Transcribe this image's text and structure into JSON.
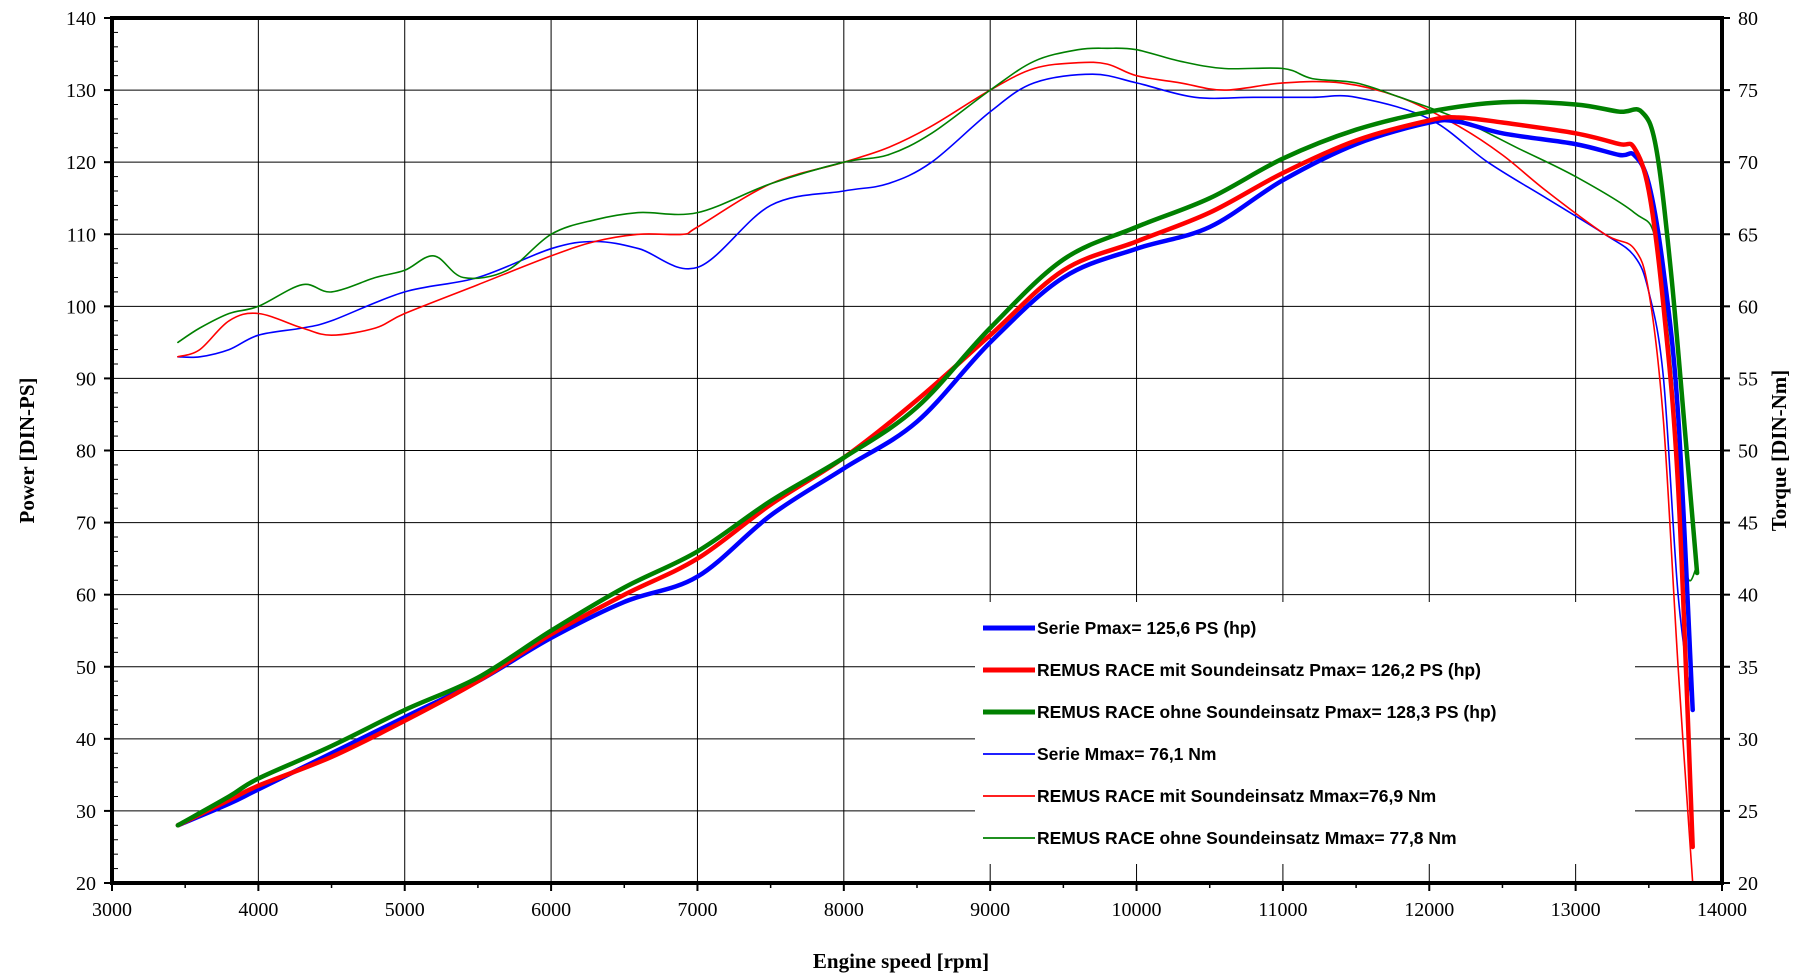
{
  "chart_data": {
    "type": "line",
    "xlabel": "Engine speed [rpm]",
    "ylabel": "Power [DIN-PS]",
    "y2label": "Torque [DIN-Nm]",
    "xlim": [
      3000,
      14000
    ],
    "ylim": [
      20,
      140
    ],
    "y2lim": [
      20,
      80
    ],
    "x_ticks": [
      3000,
      4000,
      5000,
      6000,
      7000,
      8000,
      9000,
      10000,
      11000,
      12000,
      13000,
      14000
    ],
    "y_ticks": [
      20,
      30,
      40,
      50,
      60,
      70,
      80,
      90,
      100,
      110,
      120,
      130,
      140
    ],
    "y2_ticks": [
      20,
      25,
      30,
      35,
      40,
      45,
      50,
      55,
      60,
      65,
      70,
      75,
      80
    ],
    "grid": true,
    "legend_position": "bottom-right",
    "series": [
      {
        "name": "Serie Pmax= 125,6 PS (hp)",
        "axis": "left",
        "color": "#0000ff",
        "weight": "thick",
        "x": [
          3450,
          3800,
          4000,
          4500,
          5000,
          5500,
          6000,
          6500,
          7000,
          7500,
          8000,
          8500,
          9000,
          9500,
          10000,
          10500,
          11000,
          11500,
          12000,
          12200,
          12500,
          13000,
          13300,
          13400,
          13500,
          13600,
          13700,
          13800
        ],
        "values": [
          28,
          31,
          33,
          38,
          43,
          48,
          54,
          59,
          62.5,
          71,
          77.5,
          84,
          95,
          104,
          108,
          111,
          117.5,
          122.5,
          125.5,
          125.6,
          124,
          122.5,
          121,
          121,
          117,
          105,
          85,
          44
        ]
      },
      {
        "name": "REMUS RACE mit Soundeinsatz Pmax=  126,2 PS (hp)",
        "axis": "left",
        "color": "#ff0000",
        "weight": "thick",
        "x": [
          3450,
          3800,
          4000,
          4500,
          5000,
          5500,
          6000,
          6500,
          7000,
          7500,
          8000,
          8500,
          9000,
          9500,
          10000,
          10500,
          11000,
          11500,
          12000,
          12200,
          12500,
          13000,
          13300,
          13400,
          13500,
          13600,
          13700,
          13800
        ],
        "values": [
          28,
          31.5,
          33.5,
          37.5,
          42.5,
          48,
          54.5,
          60,
          65,
          72.5,
          79,
          87,
          96,
          105,
          109,
          113,
          118.5,
          123,
          125.8,
          126.2,
          125.5,
          124,
          122.5,
          122,
          116,
          100,
          75,
          25
        ]
      },
      {
        "name": "REMUS RACE ohne Soundeinsatz Pmax= 128,3 PS (hp)",
        "axis": "left",
        "color": "#008000",
        "weight": "thick",
        "x": [
          3450,
          3800,
          4000,
          4500,
          5000,
          5500,
          6000,
          6500,
          7000,
          7500,
          8000,
          8500,
          9000,
          9500,
          10000,
          10500,
          11000,
          11500,
          12000,
          12500,
          13000,
          13300,
          13450,
          13550,
          13650,
          13750,
          13830
        ],
        "values": [
          28,
          32,
          34.5,
          39,
          44,
          48.5,
          55,
          61,
          66,
          73,
          79,
          86,
          97,
          106.5,
          111,
          115,
          120.5,
          124.5,
          127,
          128.3,
          128,
          127,
          127,
          122,
          105,
          82,
          63
        ]
      },
      {
        "name": "Serie Mmax= 76,1 Nm",
        "axis": "right",
        "color": "#0000ff",
        "weight": "thin",
        "x": [
          3450,
          3600,
          3800,
          4000,
          4300,
          4500,
          5000,
          5500,
          6000,
          6300,
          6600,
          7000,
          7500,
          8000,
          8300,
          8600,
          9000,
          9300,
          9700,
          10000,
          10400,
          10800,
          11200,
          11500,
          12000,
          12400,
          12800,
          13200,
          13400,
          13500,
          13600,
          13700,
          13800
        ],
        "values": [
          56.5,
          56.5,
          57,
          58,
          58.5,
          59,
          61,
          62,
          64,
          64.5,
          64,
          62.7,
          67,
          68,
          68.5,
          70,
          73.5,
          75.5,
          76.1,
          75.5,
          74.5,
          74.5,
          74.5,
          74.5,
          73,
          70,
          67.5,
          65,
          63.5,
          61,
          55,
          40,
          32
        ]
      },
      {
        "name": "REMUS RACE mit Soundeinsatz Mmax=76,9 Nm",
        "axis": "right",
        "color": "#ff0000",
        "weight": "thin",
        "x": [
          3450,
          3600,
          3800,
          4000,
          4300,
          4500,
          4800,
          5000,
          5500,
          6000,
          6300,
          6600,
          6900,
          7000,
          7500,
          8000,
          8300,
          8600,
          9000,
          9300,
          9600,
          9800,
          10000,
          10300,
          10600,
          11000,
          11400,
          11800,
          12200,
          12500,
          12800,
          13200,
          13400,
          13500,
          13600,
          13700,
          13800
        ],
        "values": [
          56.5,
          57,
          59,
          59.5,
          58.5,
          58,
          58.5,
          59.5,
          61.5,
          63.5,
          64.5,
          65,
          65,
          65.5,
          68.5,
          70,
          71,
          72.5,
          75,
          76.5,
          76.9,
          76.8,
          76,
          75.5,
          75,
          75.5,
          75.5,
          74.5,
          72.5,
          70.5,
          68,
          65,
          64,
          61,
          52,
          35,
          20
        ]
      },
      {
        "name": "REMUS RACE ohne Soundeinsatz Mmax= 77,8 Nm",
        "axis": "right",
        "color": "#008000",
        "weight": "thin",
        "x": [
          3450,
          3600,
          3800,
          4000,
          4300,
          4500,
          4800,
          5000,
          5200,
          5400,
          5700,
          6000,
          6300,
          6600,
          7000,
          7500,
          8000,
          8300,
          8600,
          9000,
          9300,
          9600,
          9800,
          10000,
          10300,
          10600,
          11000,
          11200,
          11500,
          11800,
          12200,
          12600,
          13000,
          13400,
          13550,
          13650,
          13750,
          13830
        ],
        "values": [
          57.5,
          58.5,
          59.5,
          60,
          61.5,
          61,
          62,
          62.5,
          63.5,
          62,
          62.5,
          65,
          66,
          66.5,
          66.5,
          68.5,
          70,
          70.5,
          72,
          75,
          77,
          77.8,
          77.9,
          77.8,
          77,
          76.5,
          76.5,
          75.8,
          75.5,
          74.5,
          73,
          71,
          69,
          66.5,
          64.5,
          56,
          42,
          42
        ]
      }
    ]
  }
}
